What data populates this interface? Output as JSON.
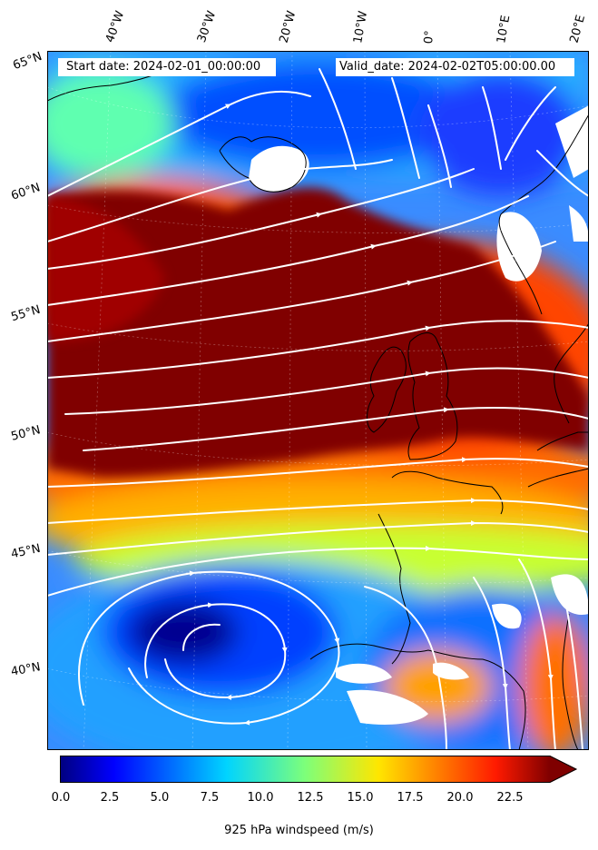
{
  "map": {
    "start_label": "Start date: 2024-02-01_00:00:00",
    "valid_label": "Valid_date: 2024-02-02T05:00:00.00",
    "lon_labels": [
      "40°W",
      "30°W",
      "20°W",
      "10°W",
      "0°",
      "10°E",
      "20°E"
    ],
    "lat_labels": [
      "65°N",
      "60°N",
      "55°N",
      "50°N",
      "45°N",
      "40°N"
    ],
    "overlay": "streamlines",
    "coastline_color": "#000000",
    "streamline_color": "#ffffff",
    "max_wind_color": "#800000",
    "min_wind_color": "#00008b"
  },
  "colorbar": {
    "label": "925 hPa windspeed (m/s)",
    "ticks": [
      "0.0",
      "2.5",
      "5.0",
      "7.5",
      "10.0",
      "12.5",
      "15.0",
      "17.5",
      "20.0",
      "22.5"
    ],
    "min": 0,
    "max": 25,
    "extend": "max",
    "colormap": "jet"
  }
}
